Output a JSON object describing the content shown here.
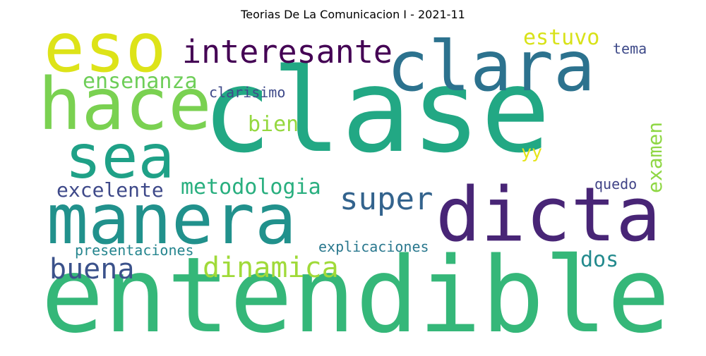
{
  "title": "Teorias De La Comunicacion I - 2021-11",
  "words": [
    {
      "text": "clase",
      "color": "#22a884"
    },
    {
      "text": "entendible",
      "color": "#35b779"
    },
    {
      "text": "manera",
      "color": "#21918c"
    },
    {
      "text": "dicta",
      "color": "#482576"
    },
    {
      "text": "clara",
      "color": "#2c728e"
    },
    {
      "text": "eso",
      "color": "#dde318"
    },
    {
      "text": "hace",
      "color": "#7ad151"
    },
    {
      "text": "sea",
      "color": "#1fa187"
    },
    {
      "text": "interesante",
      "color": "#440154"
    },
    {
      "text": "super",
      "color": "#33638d"
    },
    {
      "text": "dinamica",
      "color": "#a0da39"
    },
    {
      "text": "buena",
      "color": "#3b528b"
    },
    {
      "text": "metodologia",
      "color": "#29af7f"
    },
    {
      "text": "ensenanza",
      "color": "#6ece58"
    },
    {
      "text": "excelente",
      "color": "#3e4989"
    },
    {
      "text": "bien",
      "color": "#95d840"
    },
    {
      "text": "estuvo",
      "color": "#d8e219"
    },
    {
      "text": "examen",
      "color": "#8fd744"
    },
    {
      "text": "dos",
      "color": "#238a8d"
    },
    {
      "text": "clarisimo",
      "color": "#3f4a8a"
    },
    {
      "text": "tema",
      "color": "#3e4a89"
    },
    {
      "text": "explicaciones",
      "color": "#2a788e"
    },
    {
      "text": "presentaciones",
      "color": "#25858e"
    },
    {
      "text": "quedo",
      "color": "#414487"
    },
    {
      "text": "yy",
      "color": "#e5e419"
    }
  ]
}
